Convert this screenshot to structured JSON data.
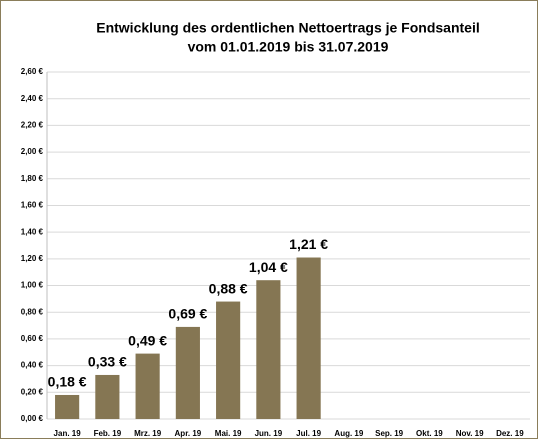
{
  "chart_data": {
    "type": "bar",
    "title": "Entwicklung des ordentlichen Nettoertrags je Fondsanteil",
    "subtitle": "vom 01.01.2019  bis 31.07.2019",
    "categories": [
      "Jan. 19",
      "Feb. 19",
      "Mrz. 19",
      "Apr. 19",
      "Mai. 19",
      "Jun. 19",
      "Jul. 19",
      "Aug. 19",
      "Sep. 19",
      "Okt. 19",
      "Nov. 19",
      "Dez. 19"
    ],
    "values": [
      0.18,
      0.33,
      0.49,
      0.69,
      0.88,
      1.04,
      1.21,
      null,
      null,
      null,
      null,
      null
    ],
    "value_labels": [
      "0,18 €",
      "0,33 €",
      "0,49 €",
      "0,69 €",
      "0,88 €",
      "1,04 €",
      "1,21 €",
      null,
      null,
      null,
      null,
      null
    ],
    "color": "#857653",
    "ylim": [
      0,
      2.6
    ],
    "yticks": [
      {
        "value": 0,
        "label": "0,00 €"
      },
      {
        "value": 0.2,
        "label": "0,20 €"
      },
      {
        "value": 0.4,
        "label": "0,40 €"
      },
      {
        "value": 0.6,
        "label": "0,60 €"
      },
      {
        "value": 0.8,
        "label": "0,80 €"
      },
      {
        "value": 1.0,
        "label": "1,00 €"
      },
      {
        "value": 1.2,
        "label": "1,20 €"
      },
      {
        "value": 1.4,
        "label": "1,40 €"
      },
      {
        "value": 1.6,
        "label": "1,60 €"
      },
      {
        "value": 1.8,
        "label": "1,80 €"
      },
      {
        "value": 2.0,
        "label": "2,00 €"
      },
      {
        "value": 2.2,
        "label": "2,20 €"
      },
      {
        "value": 2.4,
        "label": "2,40 €"
      },
      {
        "value": 2.6,
        "label": "2,60 €"
      }
    ],
    "grid": true
  }
}
